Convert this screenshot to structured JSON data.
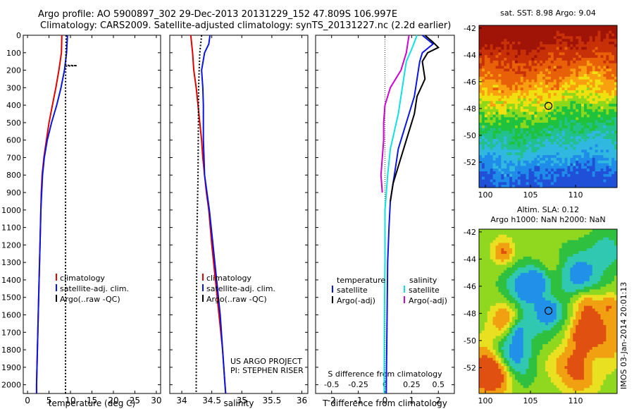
{
  "header": {
    "line1": "Argo profile: AO 5900897_302 29-Dec-2013 20131229_152 47.809S 106.997E",
    "line2": "Climatology: CARS2009. Satellite-adjusted climatology: synTS_20131227.nc (2.2d earlier)"
  },
  "colors": {
    "climatology": "#e00000",
    "satellite": "#0a16e0",
    "argo": "#000000",
    "argo_adj_s": "#d000d0",
    "satellite_s": "#10e0e0"
  },
  "chart_data": [
    {
      "type": "line",
      "panel": "temperature",
      "xlabel": "temperature (deg C)",
      "xlim": [
        -1,
        31
      ],
      "xticks": [
        0,
        5,
        10,
        15,
        20,
        25,
        30
      ],
      "ylim": [
        2050,
        0
      ],
      "yticks": [
        0,
        100,
        200,
        300,
        400,
        500,
        600,
        700,
        800,
        900,
        1000,
        1100,
        1200,
        1300,
        1400,
        1500,
        1600,
        1700,
        1800,
        1900,
        2000
      ],
      "legend": [
        "climatology",
        "satellite-adj. clim.",
        "Argo(..raw -QC)"
      ],
      "series": [
        {
          "name": "climatology",
          "color": "#e00000",
          "points": [
            [
              8.0,
              0
            ],
            [
              7.9,
              100
            ],
            [
              7.3,
              200
            ],
            [
              6.6,
              300
            ],
            [
              5.8,
              400
            ],
            [
              5.0,
              500
            ],
            [
              4.4,
              600
            ],
            [
              3.8,
              700
            ],
            [
              3.4,
              800
            ],
            [
              3.2,
              900
            ],
            [
              3.1,
              1000
            ],
            [
              2.9,
              1200
            ],
            [
              2.7,
              1400
            ],
            [
              2.5,
              1600
            ],
            [
              2.3,
              1800
            ],
            [
              2.1,
              2000
            ],
            [
              2.1,
              2050
            ]
          ]
        },
        {
          "name": "satellite-adj. clim.",
          "color": "#0a16e0",
          "points": [
            [
              9.3,
              0
            ],
            [
              9.1,
              100
            ],
            [
              8.6,
              200
            ],
            [
              7.8,
              300
            ],
            [
              6.8,
              400
            ],
            [
              5.6,
              500
            ],
            [
              4.6,
              600
            ],
            [
              3.9,
              700
            ],
            [
              3.5,
              800
            ],
            [
              3.3,
              900
            ],
            [
              3.1,
              1000
            ],
            [
              2.9,
              1200
            ],
            [
              2.7,
              1400
            ],
            [
              2.5,
              1600
            ],
            [
              2.3,
              1800
            ],
            [
              2.1,
              2000
            ],
            [
              2.1,
              2050
            ]
          ]
        },
        {
          "name": "Argo(..raw -QC)",
          "color": "#000000",
          "dotted": true,
          "points": [
            [
              9.0,
              0
            ],
            [
              8.95,
              100
            ],
            [
              8.9,
              170
            ],
            [
              9.3,
              172
            ],
            [
              11.5,
              174
            ],
            [
              9.1,
              176
            ],
            [
              8.9,
              180
            ],
            [
              8.85,
              300
            ],
            [
              8.85,
              2050
            ]
          ]
        }
      ]
    },
    {
      "type": "line",
      "panel": "salinity",
      "xlabel": "salinity",
      "xlim": [
        33.8,
        36.1
      ],
      "xticks": [
        34,
        34.5,
        35,
        35.5,
        36
      ],
      "xticklabels": [
        "34",
        "34.5",
        "35",
        "35.5",
        "36"
      ],
      "ylim": [
        2050,
        0
      ],
      "legend": [
        "climatology",
        "satellite-adj. clim.",
        "Argo(..raw -QC)"
      ],
      "annotations": [
        "US ARGO PROJECT",
        "PI: STEPHEN RISER"
      ],
      "series": [
        {
          "name": "climatology",
          "color": "#e00000",
          "points": [
            [
              34.15,
              0
            ],
            [
              34.18,
              100
            ],
            [
              34.2,
              200
            ],
            [
              34.24,
              300
            ],
            [
              34.27,
              400
            ],
            [
              34.3,
              500
            ],
            [
              34.33,
              600
            ],
            [
              34.35,
              700
            ],
            [
              34.38,
              800
            ],
            [
              34.41,
              900
            ],
            [
              34.45,
              1000
            ],
            [
              34.5,
              1200
            ],
            [
              34.56,
              1400
            ],
            [
              34.62,
              1600
            ],
            [
              34.68,
              1800
            ],
            [
              34.72,
              2000
            ],
            [
              34.73,
              2050
            ]
          ]
        },
        {
          "name": "satellite-adj. clim.",
          "color": "#0a16e0",
          "points": [
            [
              34.47,
              0
            ],
            [
              34.45,
              50
            ],
            [
              34.38,
              100
            ],
            [
              34.33,
              200
            ],
            [
              34.35,
              300
            ],
            [
              34.36,
              400
            ],
            [
              34.36,
              500
            ],
            [
              34.36,
              600
            ],
            [
              34.37,
              700
            ],
            [
              34.38,
              800
            ],
            [
              34.42,
              900
            ],
            [
              34.46,
              1000
            ],
            [
              34.52,
              1200
            ],
            [
              34.58,
              1400
            ],
            [
              34.64,
              1600
            ],
            [
              34.68,
              1800
            ],
            [
              34.72,
              2000
            ],
            [
              34.73,
              2050
            ]
          ]
        },
        {
          "name": "Argo(..raw -QC)",
          "color": "#000000",
          "dotted": true,
          "points": [
            [
              34.33,
              0
            ],
            [
              34.3,
              100
            ],
            [
              34.28,
              300
            ],
            [
              34.27,
              800
            ],
            [
              34.25,
              1200
            ],
            [
              34.24,
              2050
            ]
          ]
        }
      ]
    },
    {
      "type": "line",
      "panel": "difference",
      "xlabel": "T difference from climatology",
      "xlabel_top": "S difference from climatology",
      "xlim": [
        -2.6,
        2.6
      ],
      "xticks": [
        -2,
        -1,
        0,
        1,
        2
      ],
      "top_xticks": [
        -0.5,
        -0.25,
        0,
        0.25,
        0.5
      ],
      "top_xticklabels": [
        "-0.5",
        "-0.25",
        "0",
        "0.25",
        "0.5"
      ],
      "ylim": [
        2050,
        0
      ],
      "legend_left_title": "temperature",
      "legend_right_title": "salinity",
      "legend": [
        "satellite",
        "Argo(-adj)",
        "satellite",
        "Argo(-adj)"
      ],
      "series": [
        {
          "name": "satellite",
          "group": "temperature",
          "color": "#0a16e0",
          "points": [
            [
              1.4,
              0
            ],
            [
              1.8,
              50
            ],
            [
              1.4,
              100
            ],
            [
              1.3,
              150
            ],
            [
              1.2,
              250
            ],
            [
              1.1,
              350
            ],
            [
              0.9,
              450
            ],
            [
              0.7,
              550
            ],
            [
              0.5,
              650
            ],
            [
              0.4,
              750
            ],
            [
              0.3,
              850
            ],
            [
              0.2,
              950
            ],
            [
              0.15,
              1100
            ],
            [
              0.1,
              1300
            ],
            [
              0.08,
              1600
            ],
            [
              0.05,
              2000
            ],
            [
              0.05,
              2050
            ]
          ]
        },
        {
          "name": "Argo(-adj)",
          "group": "temperature",
          "color": "#000000",
          "points": [
            [
              1.5,
              0
            ],
            [
              1.8,
              40
            ],
            [
              2.0,
              70
            ],
            [
              1.6,
              100
            ],
            [
              1.4,
              150
            ],
            [
              1.5,
              250
            ],
            [
              1.2,
              350
            ],
            [
              1.1,
              450
            ],
            [
              0.9,
              550
            ],
            [
              0.7,
              650
            ],
            [
              0.5,
              750
            ],
            [
              0.3,
              850
            ],
            [
              0.2,
              950
            ]
          ]
        },
        {
          "name": "satellite",
          "group": "salinity",
          "color": "#10e0e0",
          "points": [
            [
              1.2,
              0
            ],
            [
              1.0,
              80
            ],
            [
              0.8,
              150
            ],
            [
              0.7,
              250
            ],
            [
              0.6,
              350
            ],
            [
              0.5,
              450
            ],
            [
              0.35,
              550
            ],
            [
              0.2,
              650
            ],
            [
              0.1,
              800
            ],
            [
              0.0,
              1000
            ],
            [
              0.0,
              1300
            ],
            [
              -0.02,
              1600
            ],
            [
              -0.03,
              2000
            ],
            [
              -0.03,
              2050
            ]
          ]
        },
        {
          "name": "Argo(-adj)",
          "group": "salinity",
          "color": "#d000d0",
          "points": [
            [
              0.9,
              0
            ],
            [
              0.8,
              100
            ],
            [
              0.6,
              200
            ],
            [
              0.2,
              300
            ],
            [
              0.0,
              400
            ],
            [
              -0.05,
              500
            ],
            [
              -0.05,
              600
            ],
            [
              -0.1,
              700
            ],
            [
              -0.15,
              800
            ],
            [
              -0.1,
              900
            ]
          ]
        }
      ]
    },
    {
      "type": "heatmap",
      "title": "sat. SST: 8.98 Argo: 9.04",
      "xlim": [
        99.3,
        114.6
      ],
      "ylim": [
        -53.9,
        -41.8
      ],
      "xticks": [
        100,
        105,
        110
      ],
      "yticks": [
        -42,
        -44,
        -46,
        -48,
        -50,
        -52
      ],
      "marker": {
        "lon": 106.997,
        "lat": -47.809
      }
    },
    {
      "type": "heatmap",
      "title": "Altim. SLA: 0.12",
      "subtitle": "Argo h1000: NaN h2000: NaN",
      "xlim": [
        99.3,
        114.6
      ],
      "ylim": [
        -53.9,
        -41.8
      ],
      "xticks": [
        100,
        105,
        110
      ],
      "yticks": [
        -42,
        -44,
        -46,
        -48,
        -50,
        -52
      ],
      "marker": {
        "lon": 106.997,
        "lat": -47.809
      }
    }
  ],
  "footer": {
    "credit": "IMOS 03-Jan-2014 20:01:13"
  }
}
